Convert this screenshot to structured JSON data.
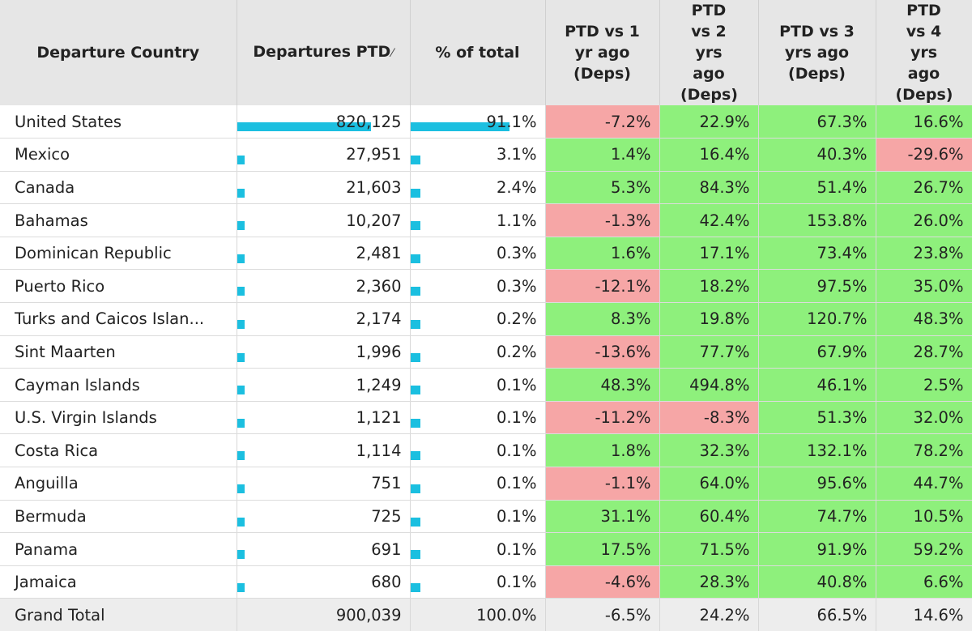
{
  "columns": {
    "country": "Departure Country",
    "departures": "Departures PTD",
    "share": "% of total",
    "vs1": "PTD vs 1 yr ago (Deps)",
    "vs2": "PTD vs 2 yrs ago (Deps)",
    "vs3": "PTD vs 3 yrs ago (Deps)",
    "vs4": "PTD vs 4 yrs ago (Deps)"
  },
  "sort_indicator": "⁄",
  "rows": [
    {
      "country": "United States",
      "departures": "820,125",
      "departures_value": 820125,
      "share": "91.1%",
      "share_value": 0.911,
      "vs1": "-7.2%",
      "vs2": "22.9%",
      "vs3": "67.3%",
      "vs4": "16.6%"
    },
    {
      "country": "Mexico",
      "departures": "27,951",
      "departures_value": 27951,
      "share": "3.1%",
      "share_value": 0.031,
      "vs1": "1.4%",
      "vs2": "16.4%",
      "vs3": "40.3%",
      "vs4": "-29.6%"
    },
    {
      "country": "Canada",
      "departures": "21,603",
      "departures_value": 21603,
      "share": "2.4%",
      "share_value": 0.024,
      "vs1": "5.3%",
      "vs2": "84.3%",
      "vs3": "51.4%",
      "vs4": "26.7%"
    },
    {
      "country": "Bahamas",
      "departures": "10,207",
      "departures_value": 10207,
      "share": "1.1%",
      "share_value": 0.011,
      "vs1": "-1.3%",
      "vs2": "42.4%",
      "vs3": "153.8%",
      "vs4": "26.0%"
    },
    {
      "country": "Dominican Republic",
      "departures": "2,481",
      "departures_value": 2481,
      "share": "0.3%",
      "share_value": 0.003,
      "vs1": "1.6%",
      "vs2": "17.1%",
      "vs3": "73.4%",
      "vs4": "23.8%"
    },
    {
      "country": "Puerto Rico",
      "departures": "2,360",
      "departures_value": 2360,
      "share": "0.3%",
      "share_value": 0.003,
      "vs1": "-12.1%",
      "vs2": "18.2%",
      "vs3": "97.5%",
      "vs4": "35.0%"
    },
    {
      "country": "Turks and Caicos Islan...",
      "departures": "2,174",
      "departures_value": 2174,
      "share": "0.2%",
      "share_value": 0.002,
      "vs1": "8.3%",
      "vs2": "19.8%",
      "vs3": "120.7%",
      "vs4": "48.3%"
    },
    {
      "country": "Sint Maarten",
      "departures": "1,996",
      "departures_value": 1996,
      "share": "0.2%",
      "share_value": 0.002,
      "vs1": "-13.6%",
      "vs2": "77.7%",
      "vs3": "67.9%",
      "vs4": "28.7%"
    },
    {
      "country": "Cayman Islands",
      "departures": "1,249",
      "departures_value": 1249,
      "share": "0.1%",
      "share_value": 0.001,
      "vs1": "48.3%",
      "vs2": "494.8%",
      "vs3": "46.1%",
      "vs4": "2.5%"
    },
    {
      "country": "U.S. Virgin Islands",
      "departures": "1,121",
      "departures_value": 1121,
      "share": "0.1%",
      "share_value": 0.001,
      "vs1": "-11.2%",
      "vs2": "-8.3%",
      "vs3": "51.3%",
      "vs4": "32.0%"
    },
    {
      "country": "Costa Rica",
      "departures": "1,114",
      "departures_value": 1114,
      "share": "0.1%",
      "share_value": 0.001,
      "vs1": "1.8%",
      "vs2": "32.3%",
      "vs3": "132.1%",
      "vs4": "78.2%"
    },
    {
      "country": "Anguilla",
      "departures": "751",
      "departures_value": 751,
      "share": "0.1%",
      "share_value": 0.001,
      "vs1": "-1.1%",
      "vs2": "64.0%",
      "vs3": "95.6%",
      "vs4": "44.7%"
    },
    {
      "country": "Bermuda",
      "departures": "725",
      "departures_value": 725,
      "share": "0.1%",
      "share_value": 0.001,
      "vs1": "31.1%",
      "vs2": "60.4%",
      "vs3": "74.7%",
      "vs4": "10.5%"
    },
    {
      "country": "Panama",
      "departures": "691",
      "departures_value": 691,
      "share": "0.1%",
      "share_value": 0.001,
      "vs1": "17.5%",
      "vs2": "71.5%",
      "vs3": "91.9%",
      "vs4": "59.2%"
    },
    {
      "country": "Jamaica",
      "departures": "680",
      "departures_value": 680,
      "share": "0.1%",
      "share_value": 0.001,
      "vs1": "-4.6%",
      "vs2": "28.3%",
      "vs3": "40.8%",
      "vs4": "6.6%"
    }
  ],
  "total": {
    "country": "Grand Total",
    "departures": "900,039",
    "share": "100.0%",
    "vs1": "-6.5%",
    "vs2": "24.2%",
    "vs3": "66.5%",
    "vs4": "14.6%"
  },
  "colors": {
    "bar": "#1bbfe0",
    "negative": "#f6a6a6",
    "positive": "#8ef07c",
    "header_bg": "#e6e6e6",
    "total_bg": "#ededed"
  }
}
